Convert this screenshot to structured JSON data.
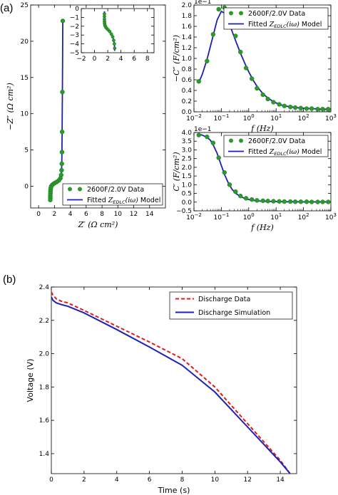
{
  "panel_labels": {
    "a": "(a)",
    "b": "(b)"
  },
  "chart_data": [
    {
      "id": "nyquist",
      "type": "scatter",
      "xlabel": "Z′ (Ω cm²)",
      "ylabel": "−Z″ (Ω cm²)",
      "xlim": [
        -1,
        16
      ],
      "ylim": [
        -3,
        25
      ],
      "xticks": [
        0,
        2,
        4,
        6,
        8,
        10,
        12,
        14
      ],
      "yticks": [
        0,
        5,
        10,
        15,
        20,
        25
      ],
      "legend": [
        "2600F/2.0V Data",
        "Fitted Z_EDLC(iω) Model"
      ],
      "legend_loc": "lower-right",
      "series": [
        {
          "name": "2600F/2.0V Data",
          "kind": "markers",
          "x": [
            3.05,
            3.0,
            2.97,
            2.95,
            2.93,
            2.9,
            2.85,
            2.75,
            2.55,
            2.3,
            2.05,
            1.85,
            1.7,
            1.6,
            1.55,
            1.52,
            1.5,
            1.5,
            1.48,
            1.48,
            1.47
          ],
          "y": [
            22.8,
            13.0,
            7.5,
            4.7,
            3.1,
            2.2,
            1.55,
            1.1,
            0.8,
            0.6,
            0.45,
            0.3,
            0.15,
            0.0,
            -0.2,
            -0.45,
            -0.7,
            -1.0,
            -1.3,
            -1.6,
            -1.9
          ]
        },
        {
          "name": "Fitted Z_EDLC(iω) Model",
          "kind": "line",
          "x": [
            3.05,
            3.03,
            3.0,
            2.97,
            2.94,
            2.9,
            2.85,
            2.75,
            2.55,
            2.3,
            2.05,
            1.85,
            1.7,
            1.6,
            1.55,
            1.52,
            1.5,
            1.49,
            1.48,
            1.47
          ],
          "y": [
            22.8,
            18.0,
            13.0,
            7.5,
            4.0,
            2.2,
            1.55,
            1.1,
            0.8,
            0.6,
            0.45,
            0.3,
            0.15,
            0.0,
            -0.2,
            -0.45,
            -0.7,
            -1.0,
            -1.5,
            -2.0
          ]
        }
      ]
    },
    {
      "id": "nyquist-inset",
      "type": "scatter",
      "xlim": [
        -2,
        9
      ],
      "ylim": [
        0,
        5
      ],
      "y_inverted": true,
      "xticks": [
        -2,
        0,
        2,
        4,
        6,
        8
      ],
      "xtick_labels": [
        "−2",
        "0",
        "2",
        "4",
        "6",
        "8"
      ],
      "yticks": [
        0,
        1,
        2,
        3,
        4,
        5
      ],
      "ytick_labels": [
        "0",
        "−1",
        "−2",
        "−3",
        "−4",
        "−5"
      ],
      "series": [
        {
          "name": "data",
          "kind": "markers",
          "x": [
            1.5,
            1.5,
            1.5,
            1.51,
            1.52,
            1.55,
            1.6,
            1.7,
            1.85,
            2.05,
            2.3,
            2.55,
            2.75,
            2.9,
            3.0,
            3.05
          ],
          "y": [
            0.6,
            0.9,
            1.2,
            1.45,
            1.65,
            1.8,
            1.95,
            2.1,
            2.25,
            2.4,
            2.6,
            2.9,
            3.2,
            3.6,
            4.0,
            4.5
          ]
        },
        {
          "name": "fit",
          "kind": "line",
          "x": [
            1.5,
            1.5,
            1.51,
            1.53,
            1.57,
            1.65,
            1.8,
            2.0,
            2.25,
            2.5,
            2.75,
            2.9,
            3.0,
            3.05
          ],
          "y": [
            0.3,
            0.8,
            1.3,
            1.6,
            1.85,
            2.0,
            2.15,
            2.35,
            2.55,
            2.85,
            3.2,
            3.6,
            4.0,
            4.8
          ]
        }
      ]
    },
    {
      "id": "c-double-prime",
      "type": "scatter",
      "x_scale": "log",
      "xlabel": "f (Hz)",
      "ylabel": "−C″ (F/cm²)",
      "y_multiplier": "1e−1",
      "xlim": [
        0.01,
        1000
      ],
      "ylim": [
        0,
        2.0
      ],
      "yticks": [
        0.0,
        0.2,
        0.4,
        0.6,
        0.8,
        1.0,
        1.2,
        1.4,
        1.6,
        1.8,
        2.0
      ],
      "ytick_labels": [
        "0.0",
        "0.2",
        "0.4",
        "0.6",
        "0.8",
        "1.0",
        "1.2",
        "1.4",
        "1.6",
        "1.8",
        "2.0"
      ],
      "legend": [
        "2600F/2.0V Data",
        "Fitted Z_EDLC(iω) Model"
      ],
      "legend_loc": "upper-right",
      "series": [
        {
          "name": "2600F/2.0V Data",
          "kind": "markers",
          "x": [
            0.015,
            0.03,
            0.05,
            0.08,
            0.13,
            0.2,
            0.33,
            0.5,
            0.8,
            1.3,
            2,
            3.3,
            5,
            8,
            13,
            20,
            33,
            50,
            80,
            130,
            200,
            330,
            500,
            800
          ],
          "y": [
            0.57,
            0.95,
            1.45,
            1.92,
            1.95,
            1.75,
            1.42,
            1.12,
            0.82,
            0.62,
            0.44,
            0.32,
            0.24,
            0.18,
            0.14,
            0.11,
            0.09,
            0.08,
            0.07,
            0.06,
            0.06,
            0.05,
            0.05,
            0.05
          ]
        },
        {
          "name": "Fitted Z_EDLC(iω) Model",
          "kind": "line",
          "x": [
            0.015,
            0.02,
            0.03,
            0.05,
            0.07,
            0.1,
            0.13,
            0.18,
            0.25,
            0.35,
            0.5,
            0.7,
            1,
            1.5,
            2.2,
            3.3,
            5,
            8,
            13,
            20,
            40,
            80,
            200,
            500,
            1000
          ],
          "y": [
            0.55,
            0.7,
            0.98,
            1.42,
            1.72,
            1.88,
            1.85,
            1.7,
            1.5,
            1.3,
            1.1,
            0.92,
            0.75,
            0.58,
            0.45,
            0.34,
            0.26,
            0.19,
            0.14,
            0.11,
            0.09,
            0.07,
            0.06,
            0.05,
            0.05
          ]
        }
      ]
    },
    {
      "id": "c-prime",
      "type": "scatter",
      "x_scale": "log",
      "xlabel": "f (Hz)",
      "ylabel": "C′ (F/cm²)",
      "y_multiplier": "1e−1",
      "xlim": [
        0.01,
        1000
      ],
      "ylim": [
        -0.5,
        4.0
      ],
      "yticks": [
        -0.5,
        0.0,
        0.5,
        1.0,
        1.5,
        2.0,
        2.5,
        3.0,
        3.5,
        4.0
      ],
      "ytick_labels": [
        "−0.5",
        "0.0",
        "0.5",
        "1.0",
        "1.5",
        "2.0",
        "2.5",
        "3.0",
        "3.5",
        "4.0"
      ],
      "legend": [
        "2600F/2.0V Data",
        "Fitted Z_EDLC(iω) Model"
      ],
      "legend_loc": "upper-right",
      "series": [
        {
          "name": "2600F/2.0V Data",
          "kind": "markers",
          "x": [
            0.015,
            0.03,
            0.05,
            0.08,
            0.13,
            0.2,
            0.33,
            0.5,
            0.8,
            1.3,
            2,
            3.3,
            5,
            8,
            13,
            20,
            33,
            50,
            80,
            130,
            200,
            330,
            500,
            800
          ],
          "y": [
            3.85,
            3.75,
            3.4,
            2.55,
            1.7,
            1.0,
            0.6,
            0.35,
            0.22,
            0.15,
            0.1,
            0.08,
            0.06,
            0.05,
            0.04,
            0.03,
            0.03,
            0.02,
            0.02,
            0.02,
            0.01,
            0.01,
            0.01,
            0.01
          ]
        },
        {
          "name": "Fitted Z_EDLC(iω) Model",
          "kind": "line",
          "x": [
            0.015,
            0.02,
            0.03,
            0.04,
            0.05,
            0.07,
            0.1,
            0.13,
            0.18,
            0.25,
            0.35,
            0.5,
            0.7,
            1,
            1.5,
            2.2,
            3.3,
            5,
            10,
            20,
            50,
            100,
            300,
            1000
          ],
          "y": [
            3.9,
            3.85,
            3.72,
            3.55,
            3.3,
            2.8,
            2.1,
            1.6,
            1.1,
            0.72,
            0.48,
            0.32,
            0.22,
            0.15,
            0.1,
            0.07,
            0.05,
            0.04,
            0.03,
            0.02,
            0.02,
            0.01,
            0.01,
            0.01
          ]
        }
      ]
    },
    {
      "id": "discharge",
      "type": "line",
      "xlabel": "Time (s)",
      "ylabel": "Voltage (V)",
      "xlim": [
        0,
        15
      ],
      "ylim": [
        1.28,
        2.4
      ],
      "xticks": [
        0,
        2,
        4,
        6,
        8,
        10,
        12,
        14
      ],
      "yticks": [
        1.4,
        1.6,
        1.8,
        2.0,
        2.2,
        2.4
      ],
      "ytick_labels": [
        "1.4",
        "1.6",
        "1.8",
        "2.0",
        "2.2",
        "2.4"
      ],
      "legend": [
        "Discharge Data",
        "Discharge Simulation"
      ],
      "legend_loc": "upper-right",
      "series": [
        {
          "name": "Discharge Data",
          "color": "#dd1c1c",
          "style": "dashed",
          "x": [
            0,
            0.1,
            0.3,
            0.6,
            1.0,
            2,
            4,
            6,
            8,
            10,
            12,
            14,
            14.6
          ],
          "y": [
            2.37,
            2.35,
            2.33,
            2.315,
            2.305,
            2.26,
            2.165,
            2.07,
            1.97,
            1.8,
            1.58,
            1.36,
            1.28
          ]
        },
        {
          "name": "Discharge Simulation",
          "color": "#1f1fb4",
          "style": "solid",
          "x": [
            0,
            0.1,
            0.3,
            0.6,
            1.0,
            2,
            4,
            6,
            8,
            10,
            12,
            14,
            14.6
          ],
          "y": [
            2.34,
            2.32,
            2.305,
            2.295,
            2.285,
            2.245,
            2.145,
            2.04,
            1.93,
            1.77,
            1.56,
            1.35,
            1.28
          ]
        }
      ]
    }
  ],
  "colors": {
    "marker": "#2a9a2a",
    "fit": "#1f1fb4",
    "data_red": "#dd1c1c"
  }
}
